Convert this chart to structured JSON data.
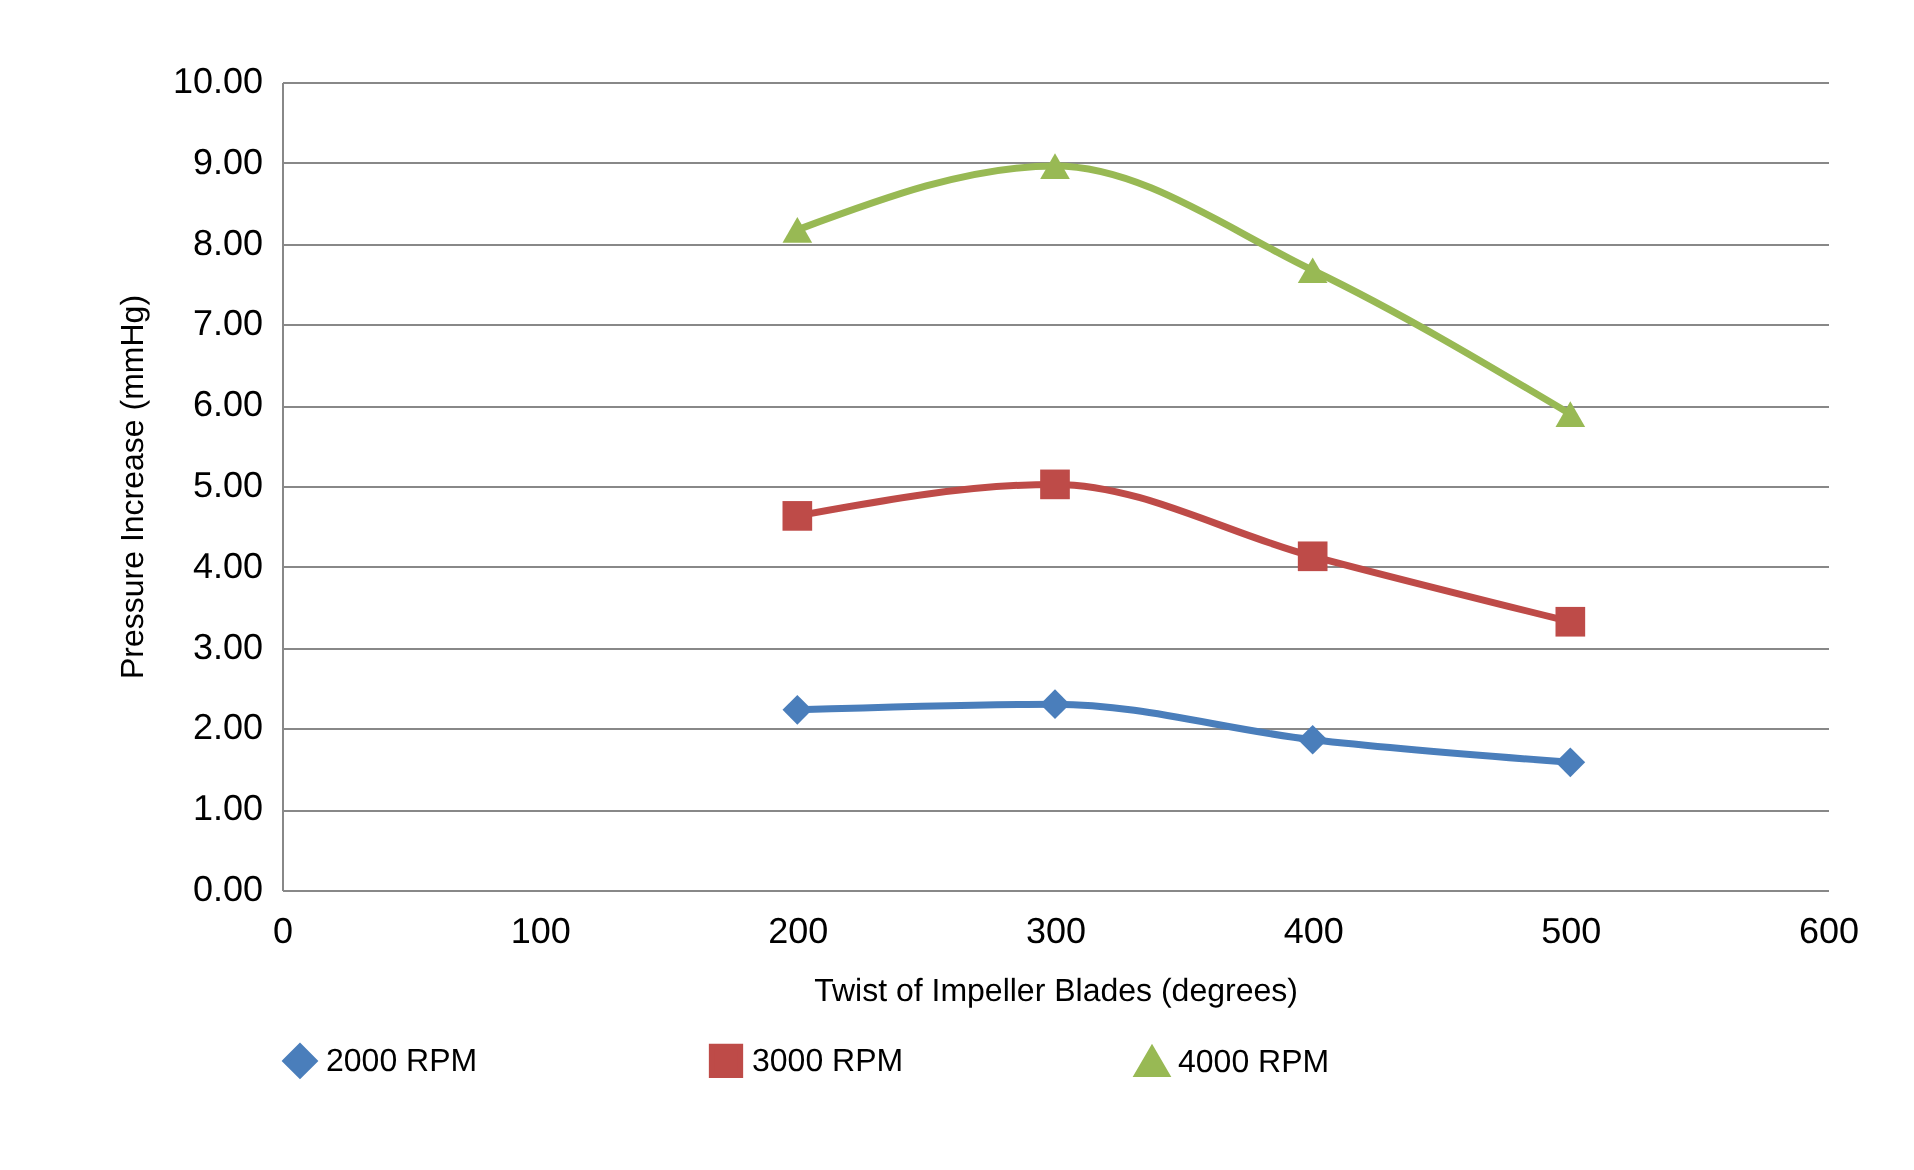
{
  "chart_data": {
    "type": "line",
    "xlabel": "Twist of Impeller Blades (degrees)",
    "ylabel": "Pressure Increase (mmHg)",
    "x": [
      200,
      300,
      400,
      500
    ],
    "series": [
      {
        "name": "2000 RPM",
        "color": "#4a7ebb",
        "marker": "diamond",
        "values": [
          2.23,
          2.3,
          1.86,
          1.58
        ]
      },
      {
        "name": "3000 RPM",
        "color": "#be4b48",
        "marker": "square",
        "values": [
          4.63,
          5.02,
          4.13,
          3.32
        ]
      },
      {
        "name": "4000 RPM",
        "color": "#98b954",
        "marker": "triangle",
        "values": [
          8.17,
          8.96,
          7.67,
          5.89
        ]
      }
    ],
    "xlim": [
      0,
      600
    ],
    "xticks": [
      0,
      100,
      200,
      300,
      400,
      500,
      600
    ],
    "ylim": [
      0,
      10
    ],
    "yticks": [
      {
        "value": 0,
        "label": "0.00"
      },
      {
        "value": 1,
        "label": "1.00"
      },
      {
        "value": 2,
        "label": "2.00"
      },
      {
        "value": 3,
        "label": "3.00"
      },
      {
        "value": 4,
        "label": "4.00"
      },
      {
        "value": 5,
        "label": "5.00"
      },
      {
        "value": 6,
        "label": "6.00"
      },
      {
        "value": 7,
        "label": "7.00"
      },
      {
        "value": 8,
        "label": "8.00"
      },
      {
        "value": 9,
        "label": "9.00"
      },
      {
        "value": 10,
        "label": "10.00"
      }
    ],
    "grid": "y",
    "legend": "bottom",
    "line_style": "solid"
  }
}
